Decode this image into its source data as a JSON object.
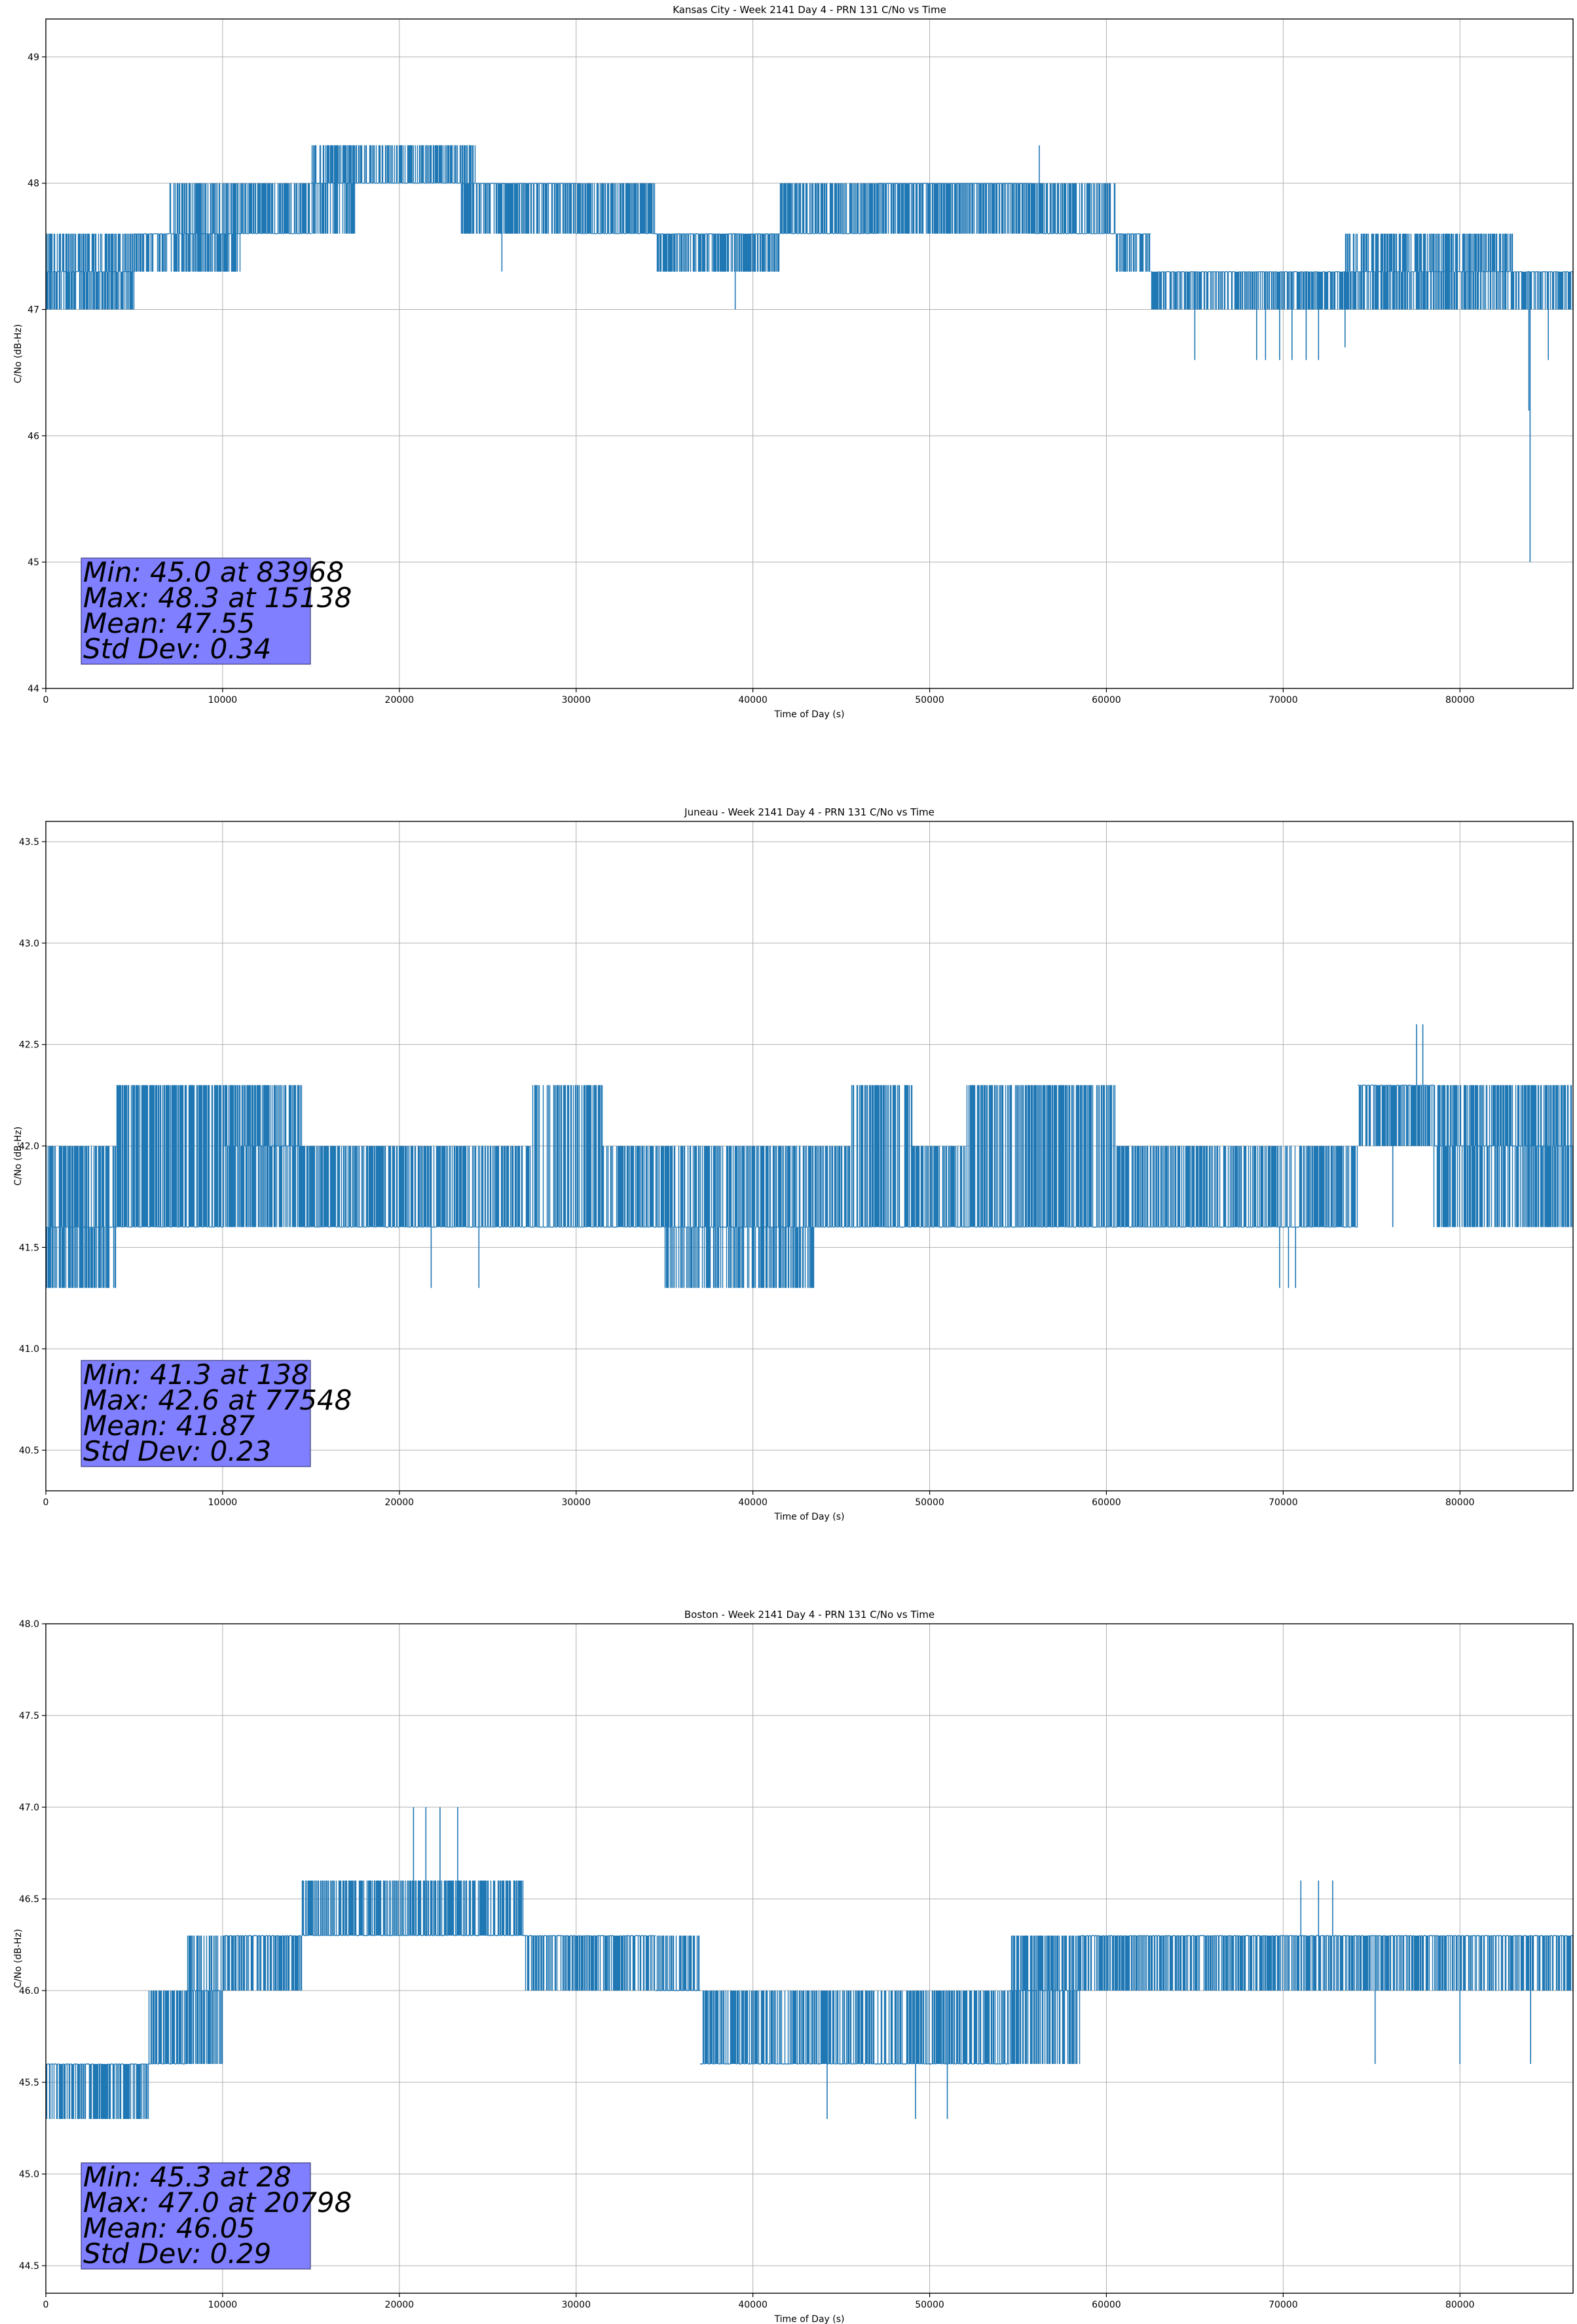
{
  "chart_data": [
    {
      "type": "line",
      "title": "Kansas City - Week 2141 Day 4 - PRN 131 C/No vs Time",
      "xlabel": "Time of Day (s)",
      "ylabel": "C/No (dB-Hz)",
      "xlim": [
        0,
        86400
      ],
      "ylim": [
        44,
        49.3
      ],
      "xticks": [
        0,
        10000,
        20000,
        30000,
        40000,
        50000,
        60000,
        70000,
        80000
      ],
      "xtick_labels": [
        "0",
        "10000",
        "20000",
        "30000",
        "40000",
        "50000",
        "60000",
        "70000",
        "80000"
      ],
      "yticks": [
        44,
        45,
        46,
        47,
        48,
        49
      ],
      "ytick_labels": [
        "44",
        "45",
        "46",
        "47",
        "48",
        "49"
      ],
      "grid": true,
      "color": "#1f77b4",
      "segments": [
        {
          "x": [
            0,
            800
          ],
          "low": 47.0,
          "high": 47.6,
          "base": 47.3
        },
        {
          "x": [
            800,
            3000
          ],
          "low": 47.0,
          "high": 47.6,
          "base": 47.3
        },
        {
          "x": [
            3000,
            5000
          ],
          "low": 47.0,
          "high": 47.6,
          "base": 47.3
        },
        {
          "x": [
            5000,
            7000
          ],
          "low": 47.3,
          "high": 47.6,
          "base": 47.6
        },
        {
          "x": [
            7000,
            11000
          ],
          "low": 47.3,
          "high": 48.0,
          "base": 47.6
        },
        {
          "x": [
            11000,
            15000
          ],
          "low": 47.6,
          "high": 48.0,
          "base": 47.6
        },
        {
          "x": [
            15000,
            17500
          ],
          "low": 47.6,
          "high": 48.3,
          "base": 48.0
        },
        {
          "x": [
            17500,
            20000
          ],
          "low": 48.0,
          "high": 48.3,
          "base": 48.0
        },
        {
          "x": [
            20000,
            23500
          ],
          "low": 48.0,
          "high": 48.3,
          "base": 48.0
        },
        {
          "x": [
            23500,
            24500
          ],
          "low": 47.6,
          "high": 48.3,
          "base": 48.0
        },
        {
          "x": [
            24500,
            30000
          ],
          "low": 47.6,
          "high": 48.0,
          "base": 48.0
        },
        {
          "x": [
            30000,
            34500
          ],
          "low": 47.6,
          "high": 48.0,
          "base": 47.6
        },
        {
          "x": [
            34500,
            41500
          ],
          "low": 47.3,
          "high": 47.6,
          "base": 47.6
        },
        {
          "x": [
            41500,
            47000
          ],
          "low": 47.6,
          "high": 48.0,
          "base": 47.6
        },
        {
          "x": [
            47000,
            56000
          ],
          "low": 47.6,
          "high": 48.0,
          "base": 48.0
        },
        {
          "x": [
            56000,
            60500
          ],
          "low": 47.6,
          "high": 48.0,
          "base": 47.6
        },
        {
          "x": [
            60500,
            62500
          ],
          "low": 47.3,
          "high": 47.6,
          "base": 47.6
        },
        {
          "x": [
            62500,
            68000
          ],
          "low": 47.0,
          "high": 47.3,
          "base": 47.3
        },
        {
          "x": [
            68000,
            73500
          ],
          "low": 47.0,
          "high": 47.3,
          "base": 47.3
        },
        {
          "x": [
            73500,
            83000
          ],
          "low": 47.0,
          "high": 47.6,
          "base": 47.3
        },
        {
          "x": [
            83000,
            86400
          ],
          "low": 47.0,
          "high": 47.3,
          "base": 47.3
        }
      ],
      "outliers": [
        {
          "x": 15138,
          "y": 48.3
        },
        {
          "x": 20100,
          "y": 48.3
        },
        {
          "x": 56200,
          "y": 48.3
        },
        {
          "x": 25800,
          "y": 47.3
        },
        {
          "x": 39000,
          "y": 47.0
        },
        {
          "x": 65000,
          "y": 46.6
        },
        {
          "x": 68500,
          "y": 46.6
        },
        {
          "x": 69000,
          "y": 46.6
        },
        {
          "x": 69800,
          "y": 46.6
        },
        {
          "x": 70500,
          "y": 46.6
        },
        {
          "x": 71300,
          "y": 46.6
        },
        {
          "x": 72000,
          "y": 46.6
        },
        {
          "x": 73500,
          "y": 46.7
        },
        {
          "x": 83900,
          "y": 46.2
        },
        {
          "x": 83968,
          "y": 45.0
        },
        {
          "x": 85000,
          "y": 46.6
        }
      ],
      "stats": {
        "min": "Min: 45.0 at 83968",
        "max": "Max: 48.3 at 15138",
        "mean": "Mean: 47.55",
        "std": "Std Dev: 0.34"
      }
    },
    {
      "type": "line",
      "title": "Juneau - Week 2141 Day 4 - PRN 131 C/No vs Time",
      "xlabel": "Time of Day (s)",
      "ylabel": "C/No (dB-Hz)",
      "xlim": [
        0,
        86400
      ],
      "ylim": [
        40.3,
        43.6
      ],
      "xticks": [
        0,
        10000,
        20000,
        30000,
        40000,
        50000,
        60000,
        70000,
        80000
      ],
      "xtick_labels": [
        "0",
        "10000",
        "20000",
        "30000",
        "40000",
        "50000",
        "60000",
        "70000",
        "80000"
      ],
      "yticks": [
        40.5,
        41.0,
        41.5,
        42.0,
        42.5,
        43.0,
        43.5
      ],
      "ytick_labels": [
        "40.5",
        "41.0",
        "41.5",
        "42.0",
        "42.5",
        "43.0",
        "43.5"
      ],
      "grid": true,
      "color": "#1f77b4",
      "segments": [
        {
          "x": [
            0,
            4000
          ],
          "low": 41.3,
          "high": 42.0,
          "base": 41.6
        },
        {
          "x": [
            4000,
            10000
          ],
          "low": 41.6,
          "high": 42.3,
          "base": 41.6
        },
        {
          "x": [
            10000,
            14500
          ],
          "low": 41.6,
          "high": 42.3,
          "base": 42.0
        },
        {
          "x": [
            14500,
            27500
          ],
          "low": 41.6,
          "high": 42.0,
          "base": 41.6
        },
        {
          "x": [
            27500,
            31500
          ],
          "low": 41.6,
          "high": 42.3,
          "base": 41.6
        },
        {
          "x": [
            31500,
            35000
          ],
          "low": 41.6,
          "high": 42.0,
          "base": 41.6
        },
        {
          "x": [
            35000,
            38000
          ],
          "low": 41.3,
          "high": 42.0,
          "base": 41.6
        },
        {
          "x": [
            38000,
            43500
          ],
          "low": 41.3,
          "high": 42.0,
          "base": 41.6
        },
        {
          "x": [
            43500,
            45500
          ],
          "low": 41.6,
          "high": 42.0,
          "base": 41.6
        },
        {
          "x": [
            45500,
            49000
          ],
          "low": 41.6,
          "high": 42.3,
          "base": 41.6
        },
        {
          "x": [
            49000,
            52000
          ],
          "low": 41.6,
          "high": 42.0,
          "base": 41.6
        },
        {
          "x": [
            52000,
            60500
          ],
          "low": 41.6,
          "high": 42.3,
          "base": 41.6
        },
        {
          "x": [
            60500,
            74200
          ],
          "low": 41.6,
          "high": 42.0,
          "base": 41.6
        },
        {
          "x": [
            74200,
            78500
          ],
          "low": 42.0,
          "high": 42.3,
          "base": 42.3
        },
        {
          "x": [
            78500,
            86400
          ],
          "low": 41.6,
          "high": 42.3,
          "base": 42.0
        }
      ],
      "outliers": [
        {
          "x": 138,
          "y": 41.3
        },
        {
          "x": 21800,
          "y": 41.3
        },
        {
          "x": 24500,
          "y": 41.3
        },
        {
          "x": 69800,
          "y": 41.3
        },
        {
          "x": 70300,
          "y": 41.3
        },
        {
          "x": 70700,
          "y": 41.3
        },
        {
          "x": 77548,
          "y": 42.6
        },
        {
          "x": 77900,
          "y": 42.6
        },
        {
          "x": 76200,
          "y": 41.6
        }
      ],
      "stats": {
        "min": "Min: 41.3 at 138",
        "max": "Max: 42.6 at 77548",
        "mean": "Mean: 41.87",
        "std": "Std Dev: 0.23"
      }
    },
    {
      "type": "line",
      "title": "Boston - Week 2141 Day 4 - PRN 131 C/No vs Time",
      "xlabel": "Time of Day (s)",
      "ylabel": "C/No (dB-Hz)",
      "xlim": [
        0,
        86400
      ],
      "ylim": [
        44.35,
        48.0
      ],
      "xticks": [
        0,
        10000,
        20000,
        30000,
        40000,
        50000,
        60000,
        70000,
        80000
      ],
      "xtick_labels": [
        "0",
        "10000",
        "20000",
        "30000",
        "40000",
        "50000",
        "60000",
        "70000",
        "80000"
      ],
      "yticks": [
        44.5,
        45.0,
        45.5,
        46.0,
        46.5,
        47.0,
        47.5,
        48.0
      ],
      "ytick_labels": [
        "44.5",
        "45.0",
        "45.5",
        "46.0",
        "46.5",
        "47.0",
        "47.5",
        "48.0"
      ],
      "grid": true,
      "color": "#1f77b4",
      "segments": [
        {
          "x": [
            0,
            5800
          ],
          "low": 45.3,
          "high": 45.6,
          "base": 45.6
        },
        {
          "x": [
            5800,
            8000
          ],
          "low": 45.6,
          "high": 46.0,
          "base": 45.6
        },
        {
          "x": [
            8000,
            10000
          ],
          "low": 45.6,
          "high": 46.3,
          "base": 46.0
        },
        {
          "x": [
            10000,
            14500
          ],
          "low": 46.0,
          "high": 46.3,
          "base": 46.3
        },
        {
          "x": [
            14500,
            27000
          ],
          "low": 46.3,
          "high": 46.6,
          "base": 46.3
        },
        {
          "x": [
            27000,
            34500
          ],
          "low": 46.0,
          "high": 46.3,
          "base": 46.3
        },
        {
          "x": [
            34500,
            37000
          ],
          "low": 46.0,
          "high": 46.3,
          "base": 46.0
        },
        {
          "x": [
            37000,
            54500
          ],
          "low": 45.6,
          "high": 46.0,
          "base": 45.6
        },
        {
          "x": [
            54500,
            58500
          ],
          "low": 45.6,
          "high": 46.3,
          "base": 46.0
        },
        {
          "x": [
            58500,
            86400
          ],
          "low": 46.0,
          "high": 46.3,
          "base": 46.3
        }
      ],
      "outliers": [
        {
          "x": 28,
          "y": 45.3
        },
        {
          "x": 20798,
          "y": 47.0
        },
        {
          "x": 21500,
          "y": 47.0
        },
        {
          "x": 22300,
          "y": 47.0
        },
        {
          "x": 23300,
          "y": 47.0
        },
        {
          "x": 44200,
          "y": 45.3
        },
        {
          "x": 49200,
          "y": 45.3
        },
        {
          "x": 51000,
          "y": 45.3
        },
        {
          "x": 71000,
          "y": 46.6
        },
        {
          "x": 72000,
          "y": 46.6
        },
        {
          "x": 72800,
          "y": 46.6
        },
        {
          "x": 75200,
          "y": 45.6
        },
        {
          "x": 80000,
          "y": 45.6
        },
        {
          "x": 84000,
          "y": 45.6
        }
      ],
      "stats": {
        "min": "Min: 45.3 at 28",
        "max": "Max: 47.0 at 20798",
        "mean": "Mean: 46.05",
        "std": "Std Dev: 0.29"
      }
    }
  ]
}
